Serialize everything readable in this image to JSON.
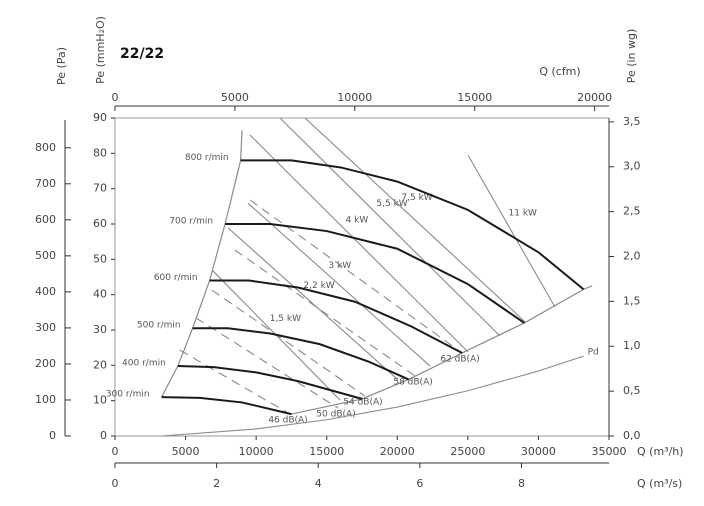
{
  "chart_data": {
    "type": "line",
    "title": "22/22",
    "x_label": "Q (m³/h)",
    "y_label": "Pe (mmH₂O)",
    "xlim": [
      0,
      35000
    ],
    "xticks": [
      0,
      5000,
      10000,
      15000,
      20000,
      25000,
      30000,
      35000
    ],
    "ylim": [
      0,
      90
    ],
    "yticks": [
      0,
      10,
      20,
      30,
      40,
      50,
      60,
      70,
      80,
      90
    ],
    "y_pa": {
      "label": "Pe (Pa)",
      "lim": [
        0,
        882.6
      ],
      "ticks": [
        0,
        100,
        200,
        300,
        400,
        500,
        600,
        700,
        800
      ]
    },
    "y_inwg": {
      "label": "Pe (in wg)",
      "lim": [
        0,
        3.543
      ],
      "ticks": [
        {
          "value": 0,
          "label": "0,0"
        },
        {
          "value": 0.5,
          "label": "0,5"
        },
        {
          "value": 1,
          "label": "1,0"
        },
        {
          "value": 1.5,
          "label": "1,5"
        },
        {
          "value": 2,
          "label": "2,0"
        },
        {
          "value": 2.5,
          "label": "2,5"
        },
        {
          "value": 3,
          "label": "3,0"
        },
        {
          "value": 3.5,
          "label": "3,5"
        }
      ]
    },
    "x_cfm": {
      "label": "Q (cfm)",
      "lim": [
        0,
        20600
      ],
      "ticks": [
        0,
        5000,
        10000,
        15000,
        20000
      ]
    },
    "x_m3s": {
      "label": "Q (m³/s)",
      "lim": [
        0,
        9.722
      ],
      "ticks": [
        0,
        2,
        4,
        6,
        8
      ]
    },
    "series": [
      {
        "name": "800 r/min",
        "color": "#1a1a1a",
        "x": [
          8900,
          12500,
          16000,
          20000,
          25000,
          30000,
          33200
        ],
        "values": [
          78,
          78,
          76,
          72,
          64,
          52,
          41.5
        ]
      },
      {
        "name": "700 r/min",
        "color": "#1a1a1a",
        "x": [
          7800,
          11000,
          15000,
          20000,
          25000,
          29000
        ],
        "values": [
          60,
          60,
          58,
          53,
          43,
          32
        ]
      },
      {
        "name": "600 r/min",
        "color": "#1a1a1a",
        "x": [
          6700,
          9500,
          13000,
          17000,
          21000,
          24600
        ],
        "values": [
          44,
          44,
          42,
          38,
          31,
          23.5
        ]
      },
      {
        "name": "500 r/min",
        "color": "#1a1a1a",
        "x": [
          5500,
          8000,
          11000,
          14500,
          18000,
          20800
        ],
        "values": [
          30.5,
          30.5,
          29,
          26,
          21,
          16
        ]
      },
      {
        "name": "400 r/min",
        "color": "#1a1a1a",
        "x": [
          4450,
          7000,
          10000,
          13000,
          17500
        ],
        "values": [
          19.8,
          19.5,
          18,
          15.5,
          10.5
        ]
      },
      {
        "name": "300 r/min",
        "color": "#1a1a1a",
        "x": [
          3300,
          6000,
          9000,
          12500
        ],
        "values": [
          11,
          10.8,
          9.5,
          6.2
        ]
      }
    ],
    "power_lines": {
      "color": "#8a8a8a",
      "lines": [
        {
          "name": "1,5 kW",
          "x": [
            6870,
            15940
          ],
          "values": [
            47,
            10.2
          ]
        },
        {
          "name": "2,2 kW",
          "x": [
            8010,
            20050
          ],
          "values": [
            58.9,
            15.9
          ]
        },
        {
          "name": "3 kW",
          "x": [
            9420,
            22320
          ],
          "values": [
            65.9,
            19.8
          ]
        },
        {
          "name": "4 kW",
          "x": [
            9560,
            25010
          ],
          "values": [
            85.2,
            23.8
          ]
        },
        {
          "name": "5,5 kW",
          "x": [
            11690,
            27280
          ],
          "values": [
            90,
            28.3
          ]
        },
        {
          "name": "7,5 kW",
          "x": [
            13460,
            29050
          ],
          "values": [
            90,
            32.3
          ]
        },
        {
          "name": "11 kW",
          "x": [
            25010,
            31170
          ],
          "values": [
            79.5,
            36.5
          ]
        }
      ]
    },
    "noise_lines": {
      "color": "#8a8a8a",
      "lines": [
        {
          "name": "46 dB(A)",
          "x": [
            4600,
            12400
          ],
          "values": [
            24.3,
            6.2
          ]
        },
        {
          "name": "50 dB(A)",
          "x": [
            5740,
            15800
          ],
          "values": [
            33.4,
            7.9
          ]
        },
        {
          "name": "54 dB(A)",
          "x": [
            6870,
            17710
          ],
          "values": [
            41.3,
            11.3
          ]
        },
        {
          "name": "58 dB(A)",
          "x": [
            8500,
            21260
          ],
          "values": [
            52.6,
            17
          ]
        },
        {
          "name": "62 dB(A)",
          "x": [
            9560,
            24590
          ],
          "values": [
            66.8,
            23.5
          ]
        }
      ]
    },
    "pd_curve": {
      "name": "Pd",
      "color": "#8a8a8a",
      "x": [
        3300,
        10000,
        15000,
        20000,
        25000,
        30000,
        33200
      ],
      "values": [
        0,
        2,
        4.6,
        8.2,
        12.8,
        18.4,
        22.6
      ]
    },
    "limits": {
      "color": "#8a8a8a",
      "lines": [
        {
          "x": [
            3300,
            4450,
            5500,
            6700,
            7800,
            8900,
            9000
          ],
          "values": [
            11,
            19.8,
            30.5,
            44,
            60,
            78,
            86.5
          ]
        },
        {
          "x": [
            12500,
            17500,
            20800,
            24600,
            29000,
            33200,
            33800
          ],
          "values": [
            6.2,
            10.5,
            16,
            23.5,
            32,
            41.5,
            42.5
          ]
        }
      ]
    }
  }
}
